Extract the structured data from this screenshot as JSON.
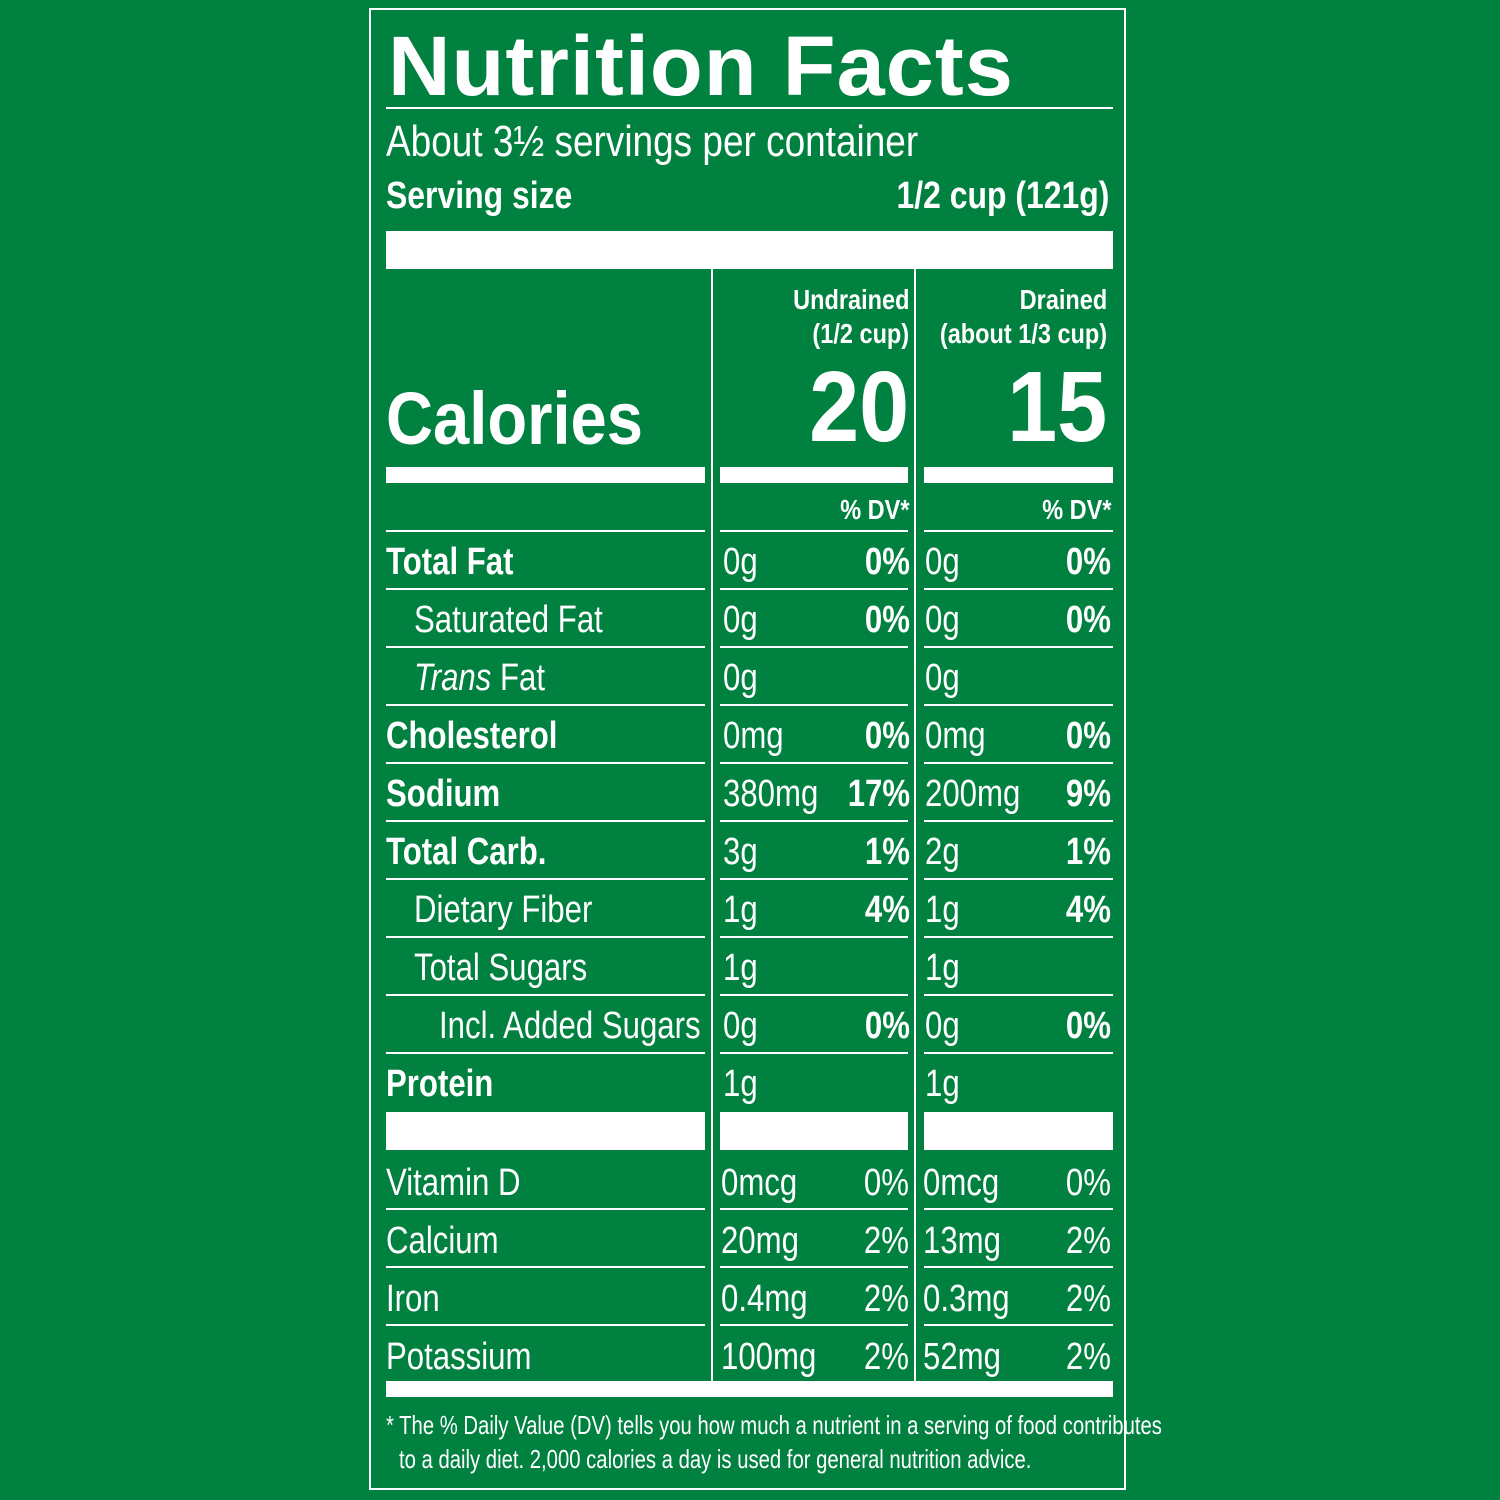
{
  "label": {
    "title": "Nutrition Facts",
    "servings_per_container": "About 3½ servings per container",
    "serving_size_label": "Serving size",
    "serving_size_value": "1/2 cup (121g)",
    "columns": [
      {
        "name": "Undrained",
        "portion": "(1/2 cup)",
        "calories": "20",
        "dv_header": "% DV*"
      },
      {
        "name": "Drained",
        "portion": "(about 1/3 cup)",
        "calories": "15",
        "dv_header": "% DV*"
      }
    ],
    "calories_label": "Calories",
    "nutrients": [
      {
        "label": "Total Fat",
        "undrained_amount": "0g",
        "undrained_dv": "0%",
        "drained_amount": "0g",
        "drained_dv": "0%"
      },
      {
        "label": "Saturated Fat",
        "undrained_amount": "0g",
        "undrained_dv": "0%",
        "drained_amount": "0g",
        "drained_dv": "0%"
      },
      {
        "label_italic": "Trans",
        "label": "Fat",
        "undrained_amount": "0g",
        "undrained_dv": "",
        "drained_amount": "0g",
        "drained_dv": ""
      },
      {
        "label": "Cholesterol",
        "undrained_amount": "0mg",
        "undrained_dv": "0%",
        "drained_amount": "0mg",
        "drained_dv": "0%"
      },
      {
        "label": "Sodium",
        "undrained_amount": "380mg",
        "undrained_dv": "17%",
        "drained_amount": "200mg",
        "drained_dv": "9%"
      },
      {
        "label": "Total Carb.",
        "undrained_amount": "3g",
        "undrained_dv": "1%",
        "drained_amount": "2g",
        "drained_dv": "1%"
      },
      {
        "label": "Dietary Fiber",
        "undrained_amount": "1g",
        "undrained_dv": "4%",
        "drained_amount": "1g",
        "drained_dv": "4%"
      },
      {
        "label": "Total Sugars",
        "undrained_amount": "1g",
        "undrained_dv": "",
        "drained_amount": "1g",
        "drained_dv": ""
      },
      {
        "label": "Incl. Added Sugars",
        "undrained_amount": "0g",
        "undrained_dv": "0%",
        "drained_amount": "0g",
        "drained_dv": "0%"
      },
      {
        "label": "Protein",
        "undrained_amount": "1g",
        "undrained_dv": "",
        "drained_amount": "1g",
        "drained_dv": ""
      }
    ],
    "vitamins": [
      {
        "label": "Vitamin D",
        "undrained_amount": "0mcg",
        "undrained_dv": "0%",
        "drained_amount": "0mcg",
        "drained_dv": "0%"
      },
      {
        "label": "Calcium",
        "undrained_amount": "20mg",
        "undrained_dv": "2%",
        "drained_amount": "13mg",
        "drained_dv": "2%"
      },
      {
        "label": "Iron",
        "undrained_amount": "0.4mg",
        "undrained_dv": "2%",
        "drained_amount": "0.3mg",
        "drained_dv": "2%"
      },
      {
        "label": "Potassium",
        "undrained_amount": "100mg",
        "undrained_dv": "2%",
        "drained_amount": "52mg",
        "drained_dv": "2%"
      }
    ],
    "footnote_line1": "* The % Daily Value (DV) tells you how much a nutrient in a serving of food contributes",
    "footnote_line2": "to a daily diet. 2,000 calories a day is used for general nutrition advice."
  },
  "colors": {
    "background": "#008140",
    "foreground": "#ffffff"
  }
}
